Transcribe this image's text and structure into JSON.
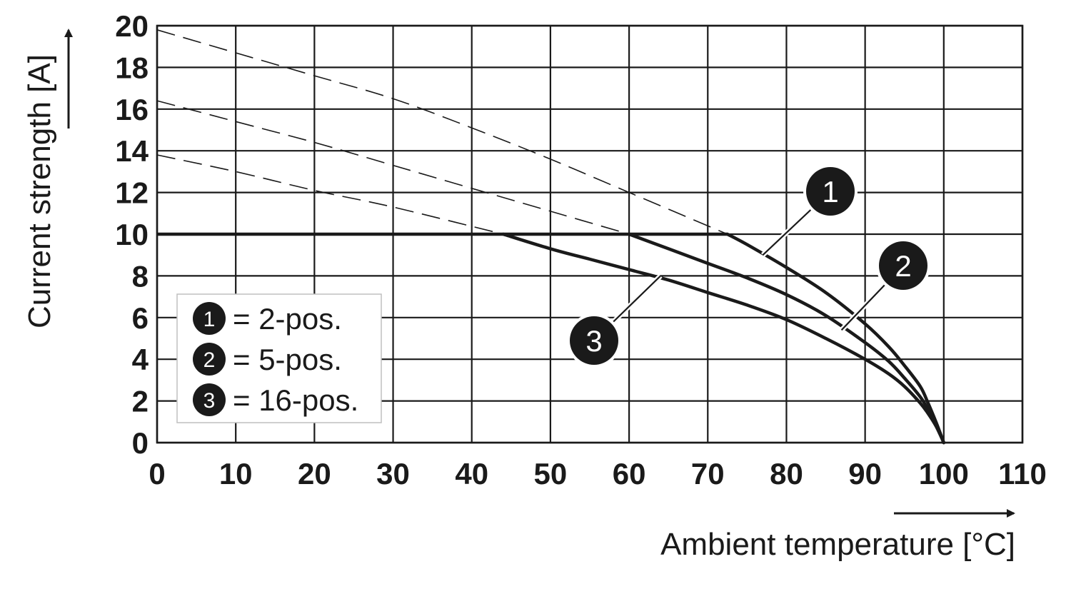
{
  "chart_data": {
    "type": "line",
    "title": "",
    "xlabel": "Ambient temperature [°C]",
    "ylabel": "Current strength [A]",
    "xlim": [
      0,
      110
    ],
    "ylim": [
      0,
      20
    ],
    "xticks": [
      0,
      10,
      20,
      30,
      40,
      50,
      60,
      70,
      80,
      90,
      100,
      110
    ],
    "yticks": [
      0,
      2,
      4,
      6,
      8,
      10,
      12,
      14,
      16,
      18,
      20
    ],
    "grid": true,
    "legend_position": "lower-left",
    "legend": [
      {
        "marker": "1",
        "text": "= 2-pos."
      },
      {
        "marker": "2",
        "text": "= 5-pos."
      },
      {
        "marker": "3",
        "text": "= 16-pos."
      }
    ],
    "limit_line": {
      "y": 10,
      "x": [
        0,
        72.5
      ]
    },
    "series": [
      {
        "name": "= 2-pos.",
        "marker": "1",
        "style": "solid",
        "x": [
          72.5,
          75,
          80,
          85,
          90,
          93,
          95,
          97,
          98,
          99,
          100
        ],
        "y": [
          10.0,
          9.5,
          8.4,
          7.2,
          5.7,
          4.6,
          3.7,
          2.7,
          1.9,
          1.0,
          0
        ]
      },
      {
        "name": "= 5-pos.",
        "marker": "2",
        "style": "solid",
        "x": [
          60,
          65,
          70,
          75,
          80,
          85,
          90,
          93,
          95,
          97,
          98,
          99,
          100
        ],
        "y": [
          10.0,
          9.3,
          8.6,
          7.9,
          7.1,
          6.1,
          4.8,
          3.9,
          3.1,
          2.2,
          1.6,
          0.9,
          0
        ]
      },
      {
        "name": "= 16-pos.",
        "marker": "3",
        "style": "solid",
        "x": [
          44,
          50,
          55,
          60,
          65,
          70,
          75,
          80,
          85,
          90,
          93,
          95,
          97,
          98,
          99,
          100
        ],
        "y": [
          10.0,
          9.3,
          8.8,
          8.3,
          7.8,
          7.2,
          6.6,
          5.9,
          5.0,
          4.0,
          3.3,
          2.7,
          1.9,
          1.4,
          0.8,
          0
        ]
      },
      {
        "name": "",
        "marker": "1",
        "style": "dashed",
        "x": [
          0,
          10,
          20,
          30,
          40,
          50,
          60,
          72.5
        ],
        "y": [
          19.8,
          18.7,
          17.6,
          16.5,
          15.1,
          13.6,
          12.0,
          10.0
        ]
      },
      {
        "name": "",
        "marker": "2",
        "style": "dashed",
        "x": [
          0,
          10,
          20,
          30,
          40,
          50,
          60
        ],
        "y": [
          16.4,
          15.4,
          14.4,
          13.3,
          12.2,
          11.1,
          10.0
        ]
      },
      {
        "name": "",
        "marker": "3",
        "style": "dashed",
        "x": [
          0,
          10,
          20,
          30,
          44
        ],
        "y": [
          13.8,
          13.0,
          12.1,
          11.3,
          10.0
        ]
      }
    ],
    "callouts": [
      {
        "marker": "1",
        "at": [
          77,
          9.0
        ]
      },
      {
        "marker": "2",
        "at": [
          87,
          5.4
        ]
      },
      {
        "marker": "3",
        "at": [
          64,
          8.0
        ]
      }
    ],
    "colors": {
      "curve": "#1a1a1a",
      "grid": "#1a1a1a",
      "marker_fill": "#1a1a1a",
      "marker_text": "#ffffff",
      "background": "#ffffff"
    }
  }
}
